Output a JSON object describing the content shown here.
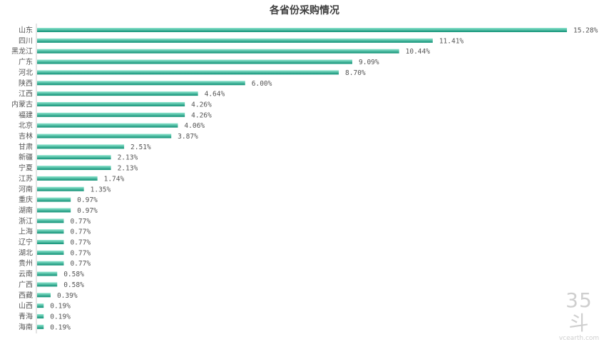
{
  "colors": {
    "bar_start": "#0e8f74",
    "bar_end": "#8fe6cf",
    "axis": "#c9c9c9",
    "text": "#555555"
  },
  "watermark": {
    "logo": "35斗",
    "url": "vcearth.com"
  },
  "chart_data": {
    "type": "bar",
    "orientation": "horizontal",
    "title": "各省份采购情况",
    "xlabel": "",
    "ylabel": "",
    "xlim": [
      0,
      16
    ],
    "grid": false,
    "categories": [
      "山东",
      "四川",
      "黑龙江",
      "广东",
      "河北",
      "陕西",
      "江西",
      "内蒙古",
      "福建",
      "北京",
      "吉林",
      "甘肃",
      "新疆",
      "宁夏",
      "江苏",
      "河南",
      "重庆",
      "湖南",
      "浙江",
      "上海",
      "辽宁",
      "湖北",
      "贵州",
      "云南",
      "广西",
      "西藏",
      "山西",
      "青海",
      "海南"
    ],
    "values": [
      15.28,
      11.41,
      10.44,
      9.09,
      8.7,
      6.0,
      4.64,
      4.26,
      4.26,
      4.06,
      3.87,
      2.51,
      2.13,
      2.13,
      1.74,
      1.35,
      0.97,
      0.97,
      0.77,
      0.77,
      0.77,
      0.77,
      0.77,
      0.58,
      0.58,
      0.39,
      0.19,
      0.19,
      0.19
    ],
    "value_labels": [
      "15.28%",
      "11.41%",
      "10.44%",
      "9.09%",
      "8.70%",
      "6.00%",
      "4.64%",
      "4.26%",
      "4.26%",
      "4.06%",
      "3.87%",
      "2.51%",
      "2.13%",
      "2.13%",
      "1.74%",
      "1.35%",
      "0.97%",
      "0.97%",
      "0.77%",
      "0.77%",
      "0.77%",
      "0.77%",
      "0.77%",
      "0.58%",
      "0.58%",
      "0.39%",
      "0.19%",
      "0.19%",
      "0.19%"
    ],
    "unit": "%"
  }
}
